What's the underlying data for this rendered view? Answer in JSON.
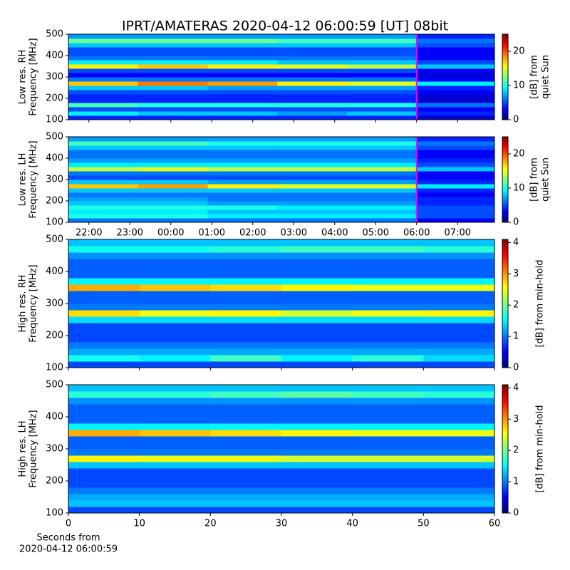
{
  "title": "IPRT/AMATERAS 2020-04-12 06:00:59 [UT]   08bit",
  "chart_data": [
    {
      "type": "heatmap",
      "ylabel": [
        "Low res. RH",
        "Frequency [MHz]"
      ],
      "colorbar_label": [
        "[dB] from",
        "quiet Sun"
      ],
      "ylim": [
        100,
        500
      ],
      "yticks": [
        100,
        200,
        300,
        400,
        500
      ],
      "xlim": [
        21.5,
        31.9
      ],
      "xticks": [
        22,
        23,
        24,
        25,
        26,
        27,
        28,
        29,
        30,
        31
      ],
      "show_xticklabels": false,
      "marker_x": 30,
      "marker_color": "#ff00ff",
      "clim": [
        0,
        25
      ],
      "cticks": [
        0,
        10,
        20
      ],
      "x_edges": [
        21.5,
        23.2,
        24.9,
        26.6,
        28.3,
        30.0,
        31.9
      ],
      "y_edges": [
        100,
        120,
        140,
        160,
        180,
        200,
        220,
        240,
        260,
        280,
        300,
        320,
        340,
        360,
        380,
        400,
        420,
        440,
        460,
        480,
        500
      ],
      "z": [
        [
          4,
          4,
          4,
          4,
          4,
          2
        ],
        [
          9,
          8,
          8,
          7,
          8,
          4
        ],
        [
          5,
          5,
          5,
          5,
          5,
          3
        ],
        [
          11,
          10,
          10,
          10,
          10,
          6
        ],
        [
          4,
          4,
          4,
          4,
          4,
          2
        ],
        [
          4,
          4,
          4,
          4,
          4,
          2
        ],
        [
          5,
          5,
          5,
          5,
          5,
          3
        ],
        [
          8,
          8,
          7,
          7,
          7,
          4
        ],
        [
          17,
          19,
          18,
          16,
          15,
          9
        ],
        [
          6,
          6,
          6,
          6,
          6,
          3
        ],
        [
          3,
          3,
          3,
          3,
          3,
          2
        ],
        [
          5,
          5,
          5,
          5,
          5,
          3
        ],
        [
          16,
          17,
          16,
          15,
          14,
          8
        ],
        [
          9,
          9,
          9,
          8,
          8,
          5
        ],
        [
          6,
          6,
          6,
          6,
          6,
          3
        ],
        [
          5,
          5,
          5,
          5,
          5,
          3
        ],
        [
          5,
          5,
          5,
          5,
          5,
          3
        ],
        [
          8,
          8,
          8,
          8,
          8,
          5
        ],
        [
          12,
          12,
          12,
          11,
          11,
          6
        ],
        [
          7,
          7,
          7,
          7,
          7,
          4
        ]
      ]
    },
    {
      "type": "heatmap",
      "ylabel": [
        "Low res. LH",
        "Frequency [MHz]"
      ],
      "colorbar_label": [
        "[dB] from",
        "quiet Sun"
      ],
      "ylim": [
        100,
        500
      ],
      "yticks": [
        100,
        200,
        300,
        400,
        500
      ],
      "xlim": [
        21.5,
        31.9
      ],
      "xticks": [
        {
          "value": 22,
          "label": "22:00"
        },
        {
          "value": 23,
          "label": "23:00"
        },
        {
          "value": 24,
          "label": "00:00"
        },
        {
          "value": 25,
          "label": "01:00"
        },
        {
          "value": 26,
          "label": "02:00"
        },
        {
          "value": 27,
          "label": "03:00"
        },
        {
          "value": 28,
          "label": "04:00"
        },
        {
          "value": 29,
          "label": "05:00"
        },
        {
          "value": 30,
          "label": "06:00"
        },
        {
          "value": 31,
          "label": "07:00"
        }
      ],
      "show_xticklabels": true,
      "marker_x": 30,
      "marker_color": "#ff00ff",
      "clim": [
        0,
        25
      ],
      "cticks": [
        0,
        10,
        20
      ],
      "x_edges": [
        21.5,
        23.2,
        24.9,
        26.6,
        28.3,
        30.0,
        31.9
      ],
      "y_edges": [
        100,
        120,
        140,
        160,
        180,
        200,
        220,
        240,
        260,
        280,
        300,
        320,
        340,
        360,
        380,
        400,
        420,
        440,
        460,
        480,
        500
      ],
      "z": [
        [
          6,
          6,
          6,
          6,
          6,
          3
        ],
        [
          10,
          10,
          9,
          9,
          9,
          5
        ],
        [
          9,
          9,
          8,
          8,
          8,
          5
        ],
        [
          10,
          10,
          10,
          9,
          9,
          5
        ],
        [
          8,
          8,
          7,
          7,
          7,
          4
        ],
        [
          7,
          7,
          6,
          6,
          6,
          4
        ],
        [
          6,
          6,
          6,
          6,
          6,
          3
        ],
        [
          8,
          8,
          8,
          8,
          8,
          4
        ],
        [
          17,
          18,
          16,
          15,
          15,
          9
        ],
        [
          8,
          8,
          7,
          7,
          7,
          4
        ],
        [
          5,
          5,
          5,
          5,
          5,
          3
        ],
        [
          6,
          6,
          6,
          6,
          6,
          3
        ],
        [
          14,
          15,
          14,
          14,
          14,
          8
        ],
        [
          9,
          9,
          9,
          9,
          9,
          5
        ],
        [
          7,
          7,
          7,
          7,
          7,
          4
        ],
        [
          6,
          6,
          6,
          6,
          6,
          3
        ],
        [
          6,
          6,
          6,
          6,
          6,
          3
        ],
        [
          8,
          8,
          8,
          8,
          8,
          5
        ],
        [
          11,
          11,
          10,
          10,
          10,
          6
        ],
        [
          7,
          7,
          7,
          7,
          7,
          4
        ]
      ]
    },
    {
      "type": "heatmap",
      "ylabel": [
        "High res. RH",
        "Frequency [MHz]"
      ],
      "colorbar_label": [
        "[dB] from min-hold"
      ],
      "ylim": [
        100,
        500
      ],
      "yticks": [
        100,
        200,
        300,
        400,
        500
      ],
      "xlim": [
        0,
        60
      ],
      "xticks": [
        0,
        10,
        20,
        30,
        40,
        50,
        60
      ],
      "show_xticklabels": false,
      "clim": [
        0,
        4.1
      ],
      "cticks": [
        0,
        1,
        2,
        3,
        4
      ],
      "x_edges": [
        0,
        10,
        20,
        30,
        40,
        50,
        60
      ],
      "y_edges": [
        100,
        120,
        140,
        160,
        180,
        200,
        220,
        240,
        260,
        280,
        300,
        320,
        340,
        360,
        380,
        400,
        420,
        440,
        460,
        480,
        500
      ],
      "z": [
        [
          0.8,
          0.8,
          0.8,
          0.8,
          0.8,
          0.8
        ],
        [
          1.6,
          1.5,
          1.8,
          1.5,
          1.7,
          1.4
        ],
        [
          1.2,
          1.2,
          1.2,
          1.2,
          1.2,
          1.2
        ],
        [
          1.0,
          1.0,
          1.0,
          1.0,
          1.0,
          1.0
        ],
        [
          0.8,
          0.8,
          0.8,
          0.8,
          0.8,
          0.8
        ],
        [
          0.8,
          0.8,
          0.8,
          0.8,
          0.8,
          0.8
        ],
        [
          0.8,
          0.8,
          0.8,
          0.8,
          0.8,
          0.8
        ],
        [
          1.4,
          1.4,
          1.4,
          1.4,
          1.4,
          1.4
        ],
        [
          2.7,
          2.5,
          2.6,
          2.4,
          2.5,
          2.6
        ],
        [
          1.0,
          1.0,
          1.0,
          1.0,
          1.0,
          1.0
        ],
        [
          0.9,
          0.9,
          0.9,
          0.9,
          0.9,
          0.9
        ],
        [
          0.9,
          0.9,
          0.9,
          0.9,
          0.9,
          0.9
        ],
        [
          2.9,
          2.8,
          2.7,
          2.6,
          2.5,
          2.5
        ],
        [
          1.5,
          1.5,
          1.5,
          1.5,
          1.5,
          1.5
        ],
        [
          0.9,
          0.9,
          0.9,
          0.9,
          0.9,
          0.9
        ],
        [
          0.9,
          0.9,
          0.9,
          0.9,
          0.9,
          0.9
        ],
        [
          0.9,
          0.9,
          0.9,
          0.9,
          0.9,
          0.9
        ],
        [
          1.1,
          1.1,
          1.1,
          1.1,
          1.1,
          1.1
        ],
        [
          1.6,
          1.6,
          1.7,
          1.8,
          1.8,
          1.7
        ],
        [
          1.3,
          1.3,
          1.3,
          1.3,
          1.3,
          1.3
        ]
      ]
    },
    {
      "type": "heatmap",
      "ylabel": [
        "High res. LH",
        "Frequency [MHz]"
      ],
      "colorbar_label": [
        "[dB] from min-hold"
      ],
      "ylim": [
        100,
        500
      ],
      "yticks": [
        100,
        200,
        300,
        400,
        500
      ],
      "xlim": [
        0,
        60
      ],
      "xticks": [
        0,
        10,
        20,
        30,
        40,
        50,
        60
      ],
      "show_xticklabels": true,
      "xlabel": [
        "Seconds from",
        "2020-04-12 06:00:59"
      ],
      "clim": [
        0,
        4.1
      ],
      "cticks": [
        0,
        1,
        2,
        3,
        4
      ],
      "x_edges": [
        0,
        10,
        20,
        30,
        40,
        50,
        60
      ],
      "y_edges": [
        100,
        120,
        140,
        160,
        180,
        200,
        220,
        240,
        260,
        280,
        300,
        320,
        340,
        360,
        380,
        400,
        420,
        440,
        460,
        480,
        500
      ],
      "z": [
        [
          0.8,
          0.8,
          0.8,
          0.8,
          0.8,
          0.8
        ],
        [
          1.3,
          1.3,
          1.3,
          1.3,
          1.3,
          1.3
        ],
        [
          1.2,
          1.2,
          1.2,
          1.2,
          1.2,
          1.2
        ],
        [
          1.0,
          1.0,
          1.0,
          1.0,
          1.0,
          1.0
        ],
        [
          0.8,
          0.8,
          0.8,
          0.8,
          0.8,
          0.8
        ],
        [
          0.8,
          0.8,
          0.8,
          0.8,
          0.8,
          0.8
        ],
        [
          0.8,
          0.8,
          0.8,
          0.8,
          0.8,
          0.8
        ],
        [
          1.3,
          1.3,
          1.3,
          1.3,
          1.3,
          1.3
        ],
        [
          2.6,
          2.5,
          2.5,
          2.4,
          2.4,
          2.4
        ],
        [
          1.0,
          1.0,
          1.0,
          1.0,
          1.0,
          1.0
        ],
        [
          0.9,
          0.9,
          0.9,
          0.9,
          0.9,
          0.9
        ],
        [
          0.9,
          0.9,
          0.9,
          0.9,
          0.9,
          0.9
        ],
        [
          2.9,
          2.8,
          2.7,
          2.6,
          2.5,
          2.5
        ],
        [
          1.5,
          1.5,
          1.5,
          1.5,
          1.5,
          1.5
        ],
        [
          0.9,
          0.9,
          0.9,
          0.9,
          0.9,
          0.9
        ],
        [
          0.9,
          0.9,
          0.9,
          0.9,
          0.9,
          0.9
        ],
        [
          0.9,
          0.9,
          0.9,
          0.9,
          0.9,
          0.9
        ],
        [
          1.1,
          1.1,
          1.1,
          1.1,
          1.1,
          1.1
        ],
        [
          1.7,
          1.7,
          1.8,
          1.9,
          1.8,
          1.7
        ],
        [
          1.3,
          1.3,
          1.3,
          1.3,
          1.3,
          1.3
        ]
      ]
    }
  ]
}
